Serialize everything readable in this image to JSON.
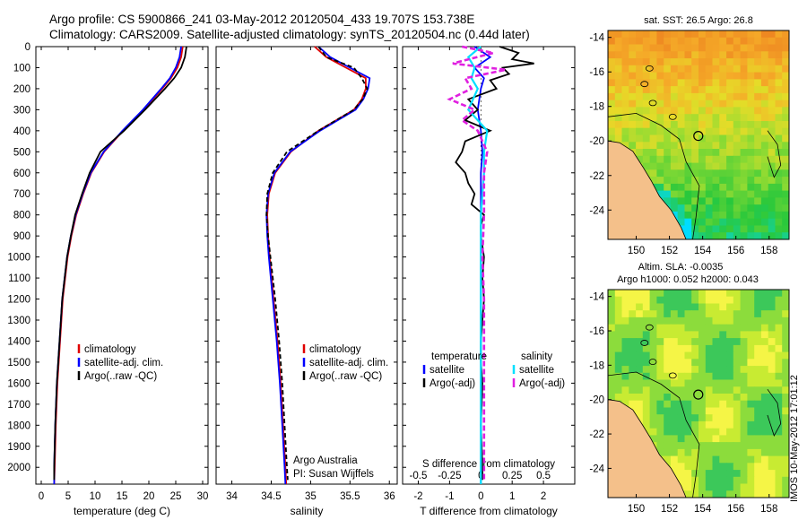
{
  "header": {
    "line1": "Argo profile: CS 5900866_241 03-May-2012 20120504_433 19.707S 153.738E",
    "line2": "Climatology: CARS2009. Satellite-adjusted climatology: synTS_20120504.nc (0.44d later)"
  },
  "colors": {
    "climatology": "#e00000",
    "satellite": "#0000ff",
    "argo": "#000000",
    "cyan": "#00e0ff",
    "magenta": "#e020e0",
    "land": "#f4c08a"
  },
  "chart_data": [
    {
      "type": "line",
      "name": "temperature-profile",
      "xlabel": "temperature (deg C)",
      "ylabel": "",
      "xlim": [
        -1,
        31
      ],
      "ylim": [
        0,
        2080
      ],
      "xticks": [
        0,
        5,
        10,
        15,
        20,
        25,
        30
      ],
      "yticks": [
        0,
        100,
        200,
        300,
        400,
        500,
        600,
        700,
        800,
        900,
        1000,
        1100,
        1200,
        1300,
        1400,
        1500,
        1600,
        1700,
        1800,
        1900,
        2000
      ],
      "legend": [
        "climatology",
        "satellite-adj. clim.",
        "Argo(..raw -QC)"
      ],
      "series": [
        {
          "name": "climatology",
          "depth": [
            0,
            50,
            100,
            150,
            200,
            300,
            400,
            500,
            600,
            700,
            800,
            900,
            1000,
            1200,
            1400,
            1600,
            1800,
            2000,
            2080
          ],
          "values": [
            26.3,
            26.0,
            25.3,
            24.1,
            22.5,
            19.0,
            15.2,
            11.7,
            9.3,
            7.8,
            6.5,
            5.6,
            4.9,
            4.0,
            3.5,
            3.0,
            2.7,
            2.5,
            2.4
          ]
        },
        {
          "name": "satellite-adj. clim.",
          "depth": [
            0,
            50,
            100,
            150,
            200,
            300,
            400,
            500,
            600,
            700,
            800,
            900,
            1000,
            1200,
            1400,
            1600,
            1800,
            2000,
            2080
          ],
          "values": [
            26.0,
            25.7,
            25.0,
            23.9,
            22.3,
            18.9,
            15.1,
            11.6,
            9.2,
            7.7,
            6.4,
            5.5,
            4.8,
            3.9,
            3.4,
            2.9,
            2.6,
            2.4,
            2.4
          ]
        },
        {
          "name": "Argo(..raw -QC)",
          "depth": [
            0,
            50,
            100,
            150,
            200,
            300,
            400,
            500,
            600,
            700,
            800,
            900,
            1000,
            1200,
            1400,
            1600,
            1800,
            2000,
            2060
          ],
          "values": [
            27.0,
            26.7,
            26.0,
            24.7,
            23.0,
            19.3,
            15.4,
            11.0,
            9.0,
            7.6,
            6.3,
            5.5,
            4.8,
            3.9,
            3.4,
            2.9,
            2.6,
            2.4,
            2.4
          ]
        }
      ]
    },
    {
      "type": "line",
      "name": "salinity-profile",
      "xlabel": "salinity",
      "ylabel": "",
      "xlim": [
        33.8,
        36.1
      ],
      "ylim": [
        0,
        2080
      ],
      "xticks": [
        34,
        34.5,
        35,
        35.5,
        36
      ],
      "legend": [
        "climatology",
        "satellite-adj. clim.",
        "Argo(..raw -QC)"
      ],
      "annotation": [
        "Argo Australia",
        "PI: Susan Wijffels"
      ],
      "series": [
        {
          "name": "climatology",
          "depth": [
            0,
            50,
            100,
            150,
            200,
            250,
            300,
            400,
            500,
            600,
            700,
            800,
            900,
            1000,
            1200,
            1400,
            1600,
            1800,
            2000,
            2080
          ],
          "values": [
            35.05,
            35.2,
            35.45,
            35.7,
            35.7,
            35.65,
            35.55,
            35.1,
            34.75,
            34.55,
            34.47,
            34.45,
            34.46,
            34.48,
            34.53,
            34.58,
            34.62,
            34.65,
            34.68,
            34.69
          ]
        },
        {
          "name": "satellite-adj. clim.",
          "depth": [
            0,
            50,
            100,
            150,
            200,
            250,
            300,
            400,
            500,
            600,
            700,
            800,
            900,
            1000,
            1200,
            1400,
            1600,
            1800,
            2000,
            2080
          ],
          "values": [
            35.1,
            35.25,
            35.5,
            35.75,
            35.73,
            35.67,
            35.57,
            35.12,
            34.74,
            34.54,
            34.46,
            34.44,
            34.45,
            34.47,
            34.52,
            34.57,
            34.61,
            34.64,
            34.67,
            34.68
          ]
        },
        {
          "name": "Argo(..raw -QC)",
          "depth": [
            0,
            50,
            100,
            150,
            200,
            250,
            300,
            400,
            500,
            600,
            700,
            800,
            900,
            1000,
            1200,
            1400,
            1600,
            1800,
            2000,
            2060
          ],
          "values": [
            35.1,
            35.2,
            35.55,
            35.65,
            35.72,
            35.66,
            35.55,
            35.1,
            34.7,
            34.52,
            34.45,
            34.44,
            34.46,
            34.49,
            34.55,
            34.6,
            34.64,
            34.67,
            34.7,
            34.71
          ]
        }
      ]
    },
    {
      "type": "line",
      "name": "difference-profile",
      "xlabel": "T difference from climatology",
      "x2label": "S difference from climatology",
      "xlim": [
        -2.5,
        3
      ],
      "ylim": [
        0,
        2080
      ],
      "xticks": [
        -2,
        -1,
        0,
        1,
        2
      ],
      "xtick_labels": [
        "-2",
        "-1",
        "0",
        "1",
        "2"
      ],
      "x2ticks": [
        -2,
        -1,
        0,
        1,
        2
      ],
      "x2tick_labels": [
        "-0.5",
        "-0.25",
        "0",
        "0.25",
        "0.5"
      ],
      "legend_headers": [
        "temperature",
        "salinity"
      ],
      "legend": [
        "satellite",
        "Argo(-adj)",
        "satellite",
        "Argo(-adj)"
      ],
      "series": [
        {
          "name": "temperature satellite",
          "depth": [
            0,
            50,
            100,
            150,
            200,
            300,
            400,
            500,
            600,
            800,
            1000,
            1500,
            2000,
            2080
          ],
          "values": [
            -0.2,
            0.3,
            -0.2,
            0.1,
            0.0,
            -0.1,
            0.0,
            0.05,
            0.0,
            0.0,
            0.0,
            0.0,
            0.0,
            0.0
          ]
        },
        {
          "name": "temperature Argo(-adj)",
          "depth": [
            0,
            30,
            60,
            80,
            100,
            130,
            160,
            200,
            250,
            300,
            350,
            400,
            450,
            500,
            550,
            600,
            650,
            700,
            750,
            800,
            850,
            900,
            1000,
            1100,
            1200,
            1300,
            1400,
            1500,
            1600,
            1800,
            2000,
            2060
          ],
          "values": [
            0.6,
            1.2,
            1.0,
            1.7,
            0.7,
            0.9,
            0.3,
            0.5,
            -0.4,
            -0.1,
            -0.5,
            0.3,
            -0.5,
            -0.6,
            -0.8,
            -0.5,
            -0.4,
            -0.2,
            -0.3,
            0.1,
            0.0,
            0.0,
            0.1,
            0.05,
            0.1,
            0.05,
            0.0,
            0.0,
            0.05,
            0.0,
            0.05,
            0.05
          ]
        },
        {
          "name": "salinity satellite",
          "depth": [
            0,
            50,
            100,
            150,
            200,
            300,
            400,
            500,
            600,
            800,
            1000,
            1500,
            2000,
            2080
          ],
          "values": [
            0.0,
            -0.4,
            -0.2,
            -0.3,
            -0.1,
            -0.4,
            0.2,
            0.1,
            0.1,
            0.0,
            0.0,
            0.0,
            0.0,
            0.0
          ]
        },
        {
          "name": "salinity Argo(-adj)",
          "depth": [
            0,
            30,
            80,
            110,
            150,
            200,
            250,
            300,
            350,
            400,
            500,
            600,
            800,
            1000,
            1200,
            1500,
            1800,
            2000,
            2060
          ],
          "values": [
            -0.6,
            0.4,
            -0.9,
            0.8,
            -0.5,
            -0.3,
            -1.0,
            -0.2,
            -0.6,
            -0.1,
            0.2,
            0.1,
            0.1,
            0.05,
            0.1,
            0.1,
            0.1,
            0.1,
            0.1
          ]
        }
      ]
    }
  ],
  "maps": [
    {
      "title": "sat. SST: 26.5 Argo: 26.8",
      "yticks": [
        "-14",
        "-16",
        "-18",
        "-20",
        "-22",
        "-24"
      ],
      "xticks": [
        "150",
        "152",
        "154",
        "156",
        "158"
      ]
    },
    {
      "title1": "Altim. SLA: -0.0035",
      "title2": "Argo h1000: 0.052 h2000: 0.043",
      "yticks": [
        "-14",
        "-16",
        "-18",
        "-20",
        "-22",
        "-24"
      ],
      "xticks": [
        "150",
        "152",
        "154",
        "156",
        "158"
      ]
    }
  ],
  "footer": {
    "stamp": "IMOS 10-May-2012 17:01:12"
  }
}
